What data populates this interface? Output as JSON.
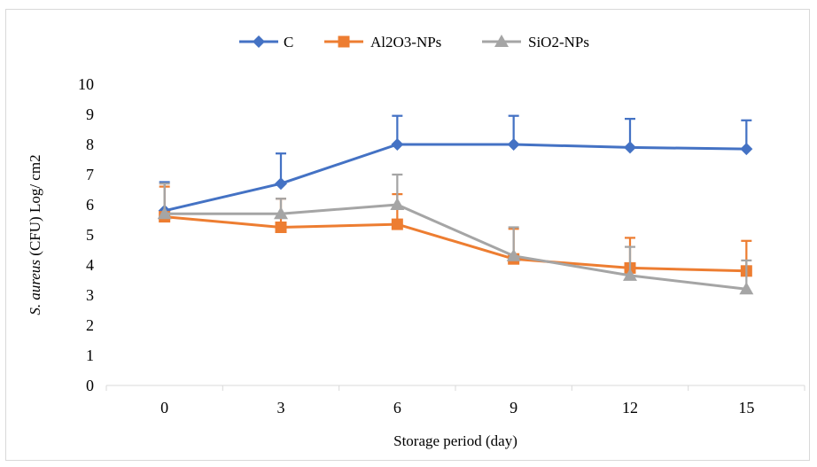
{
  "chart_data": {
    "type": "line",
    "title": "",
    "xlabel": "Storage period (day)",
    "ylabel_italic": "S. aureus",
    "ylabel_rest": " (CFU) Log/ cm2",
    "categories": [
      "0",
      "3",
      "6",
      "9",
      "12",
      "15"
    ],
    "ylim": [
      0,
      10
    ],
    "yticks": [
      0,
      1,
      2,
      3,
      4,
      5,
      6,
      7,
      8,
      9,
      10
    ],
    "grid": false,
    "legend_position": "top",
    "series": [
      {
        "name": "C",
        "color": "#4472C4",
        "marker": "diamond",
        "values": [
          5.8,
          6.7,
          8.0,
          8.0,
          7.9,
          7.85
        ],
        "error_plus": [
          0.95,
          1.0,
          0.95,
          0.95,
          0.95,
          0.95
        ]
      },
      {
        "name": "Al2O3-NPs",
        "color": "#ED7D31",
        "marker": "square",
        "values": [
          5.6,
          5.25,
          5.35,
          4.2,
          3.9,
          3.8
        ],
        "error_plus": [
          1.0,
          0.95,
          1.0,
          1.0,
          1.0,
          1.0
        ]
      },
      {
        "name": "SiO2-NPs",
        "color": "#A5A5A5",
        "marker": "triangle",
        "values": [
          5.7,
          5.7,
          6.0,
          4.3,
          3.65,
          3.2
        ],
        "error_plus": [
          1.0,
          0.5,
          1.0,
          0.95,
          0.95,
          0.95
        ]
      }
    ]
  }
}
